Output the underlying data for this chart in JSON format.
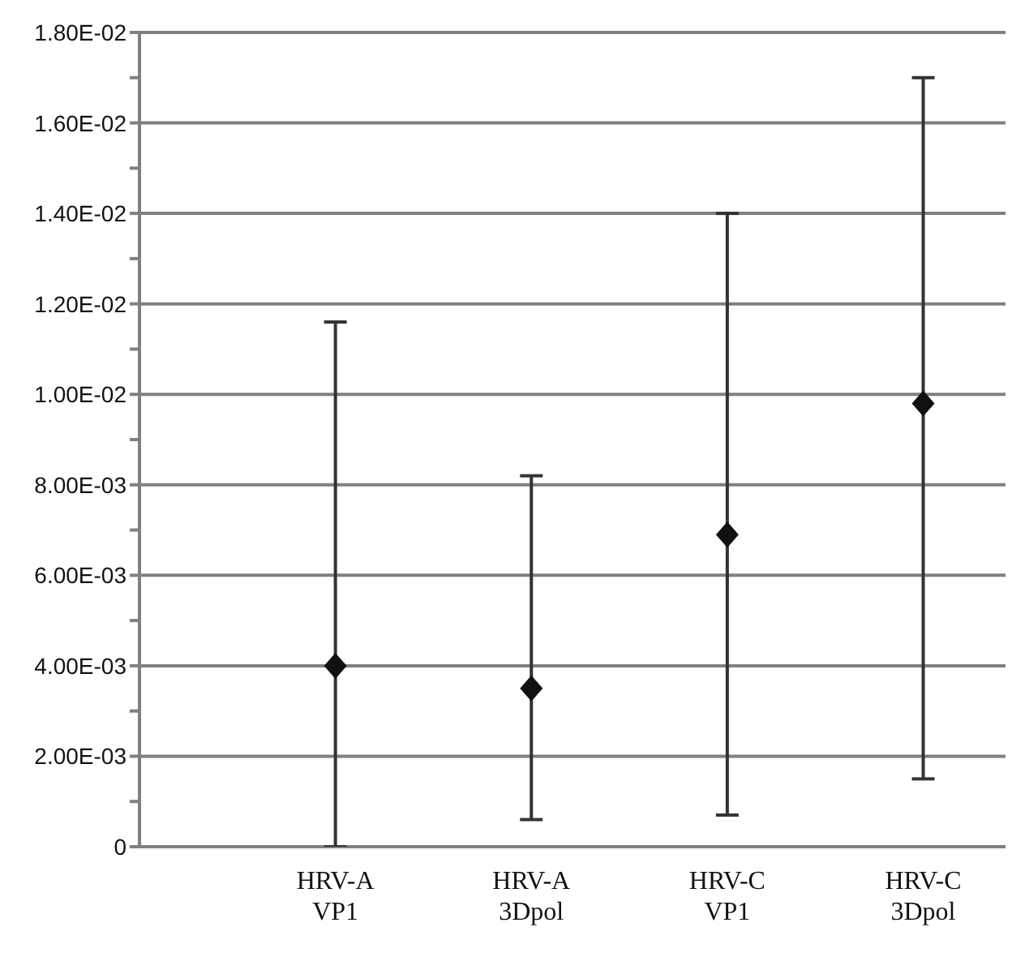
{
  "chart_data": {
    "type": "scatter",
    "categories": [
      "HRV-A\nVP1",
      "HRV-A\n3Dpol",
      "HRV-C\nVP1",
      "HRV-C\n3Dpol"
    ],
    "values": [
      0.004,
      0.0035,
      0.0069,
      0.0098
    ],
    "errors": [
      [
        0,
        0.0116
      ],
      [
        0.0006,
        0.0082
      ],
      [
        0.0007,
        0.014
      ],
      [
        0.0015,
        0.017
      ]
    ],
    "color": "#111111",
    "marker": "diamond",
    "ylim": [
      0,
      0.018
    ],
    "yticks": [
      0,
      {
        "value": 0.001,
        "label": null
      },
      {
        "value": 0.002,
        "label": "2.00E-03"
      },
      {
        "value": 0.003,
        "label": null
      },
      {
        "value": 0.004,
        "label": "4.00E-03"
      },
      {
        "value": 0.005,
        "label": null
      },
      {
        "value": 0.006,
        "label": "6.00E-03"
      },
      {
        "value": 0.007,
        "label": null
      },
      {
        "value": 0.008,
        "label": "8.00E-03"
      },
      {
        "value": 0.009,
        "label": null
      },
      {
        "value": 0.01,
        "label": "1.00E-02"
      },
      {
        "value": 0.011,
        "label": null
      },
      {
        "value": 0.012,
        "label": "1.20E-02"
      },
      {
        "value": 0.013,
        "label": null
      },
      {
        "value": 0.014,
        "label": "1.40E-02"
      },
      {
        "value": 0.015,
        "label": null
      },
      {
        "value": 0.016,
        "label": "1.60E-02"
      },
      {
        "value": 0.017,
        "label": null
      },
      {
        "value": 0.018,
        "label": "1.80E-02"
      }
    ],
    "grid": "y"
  }
}
